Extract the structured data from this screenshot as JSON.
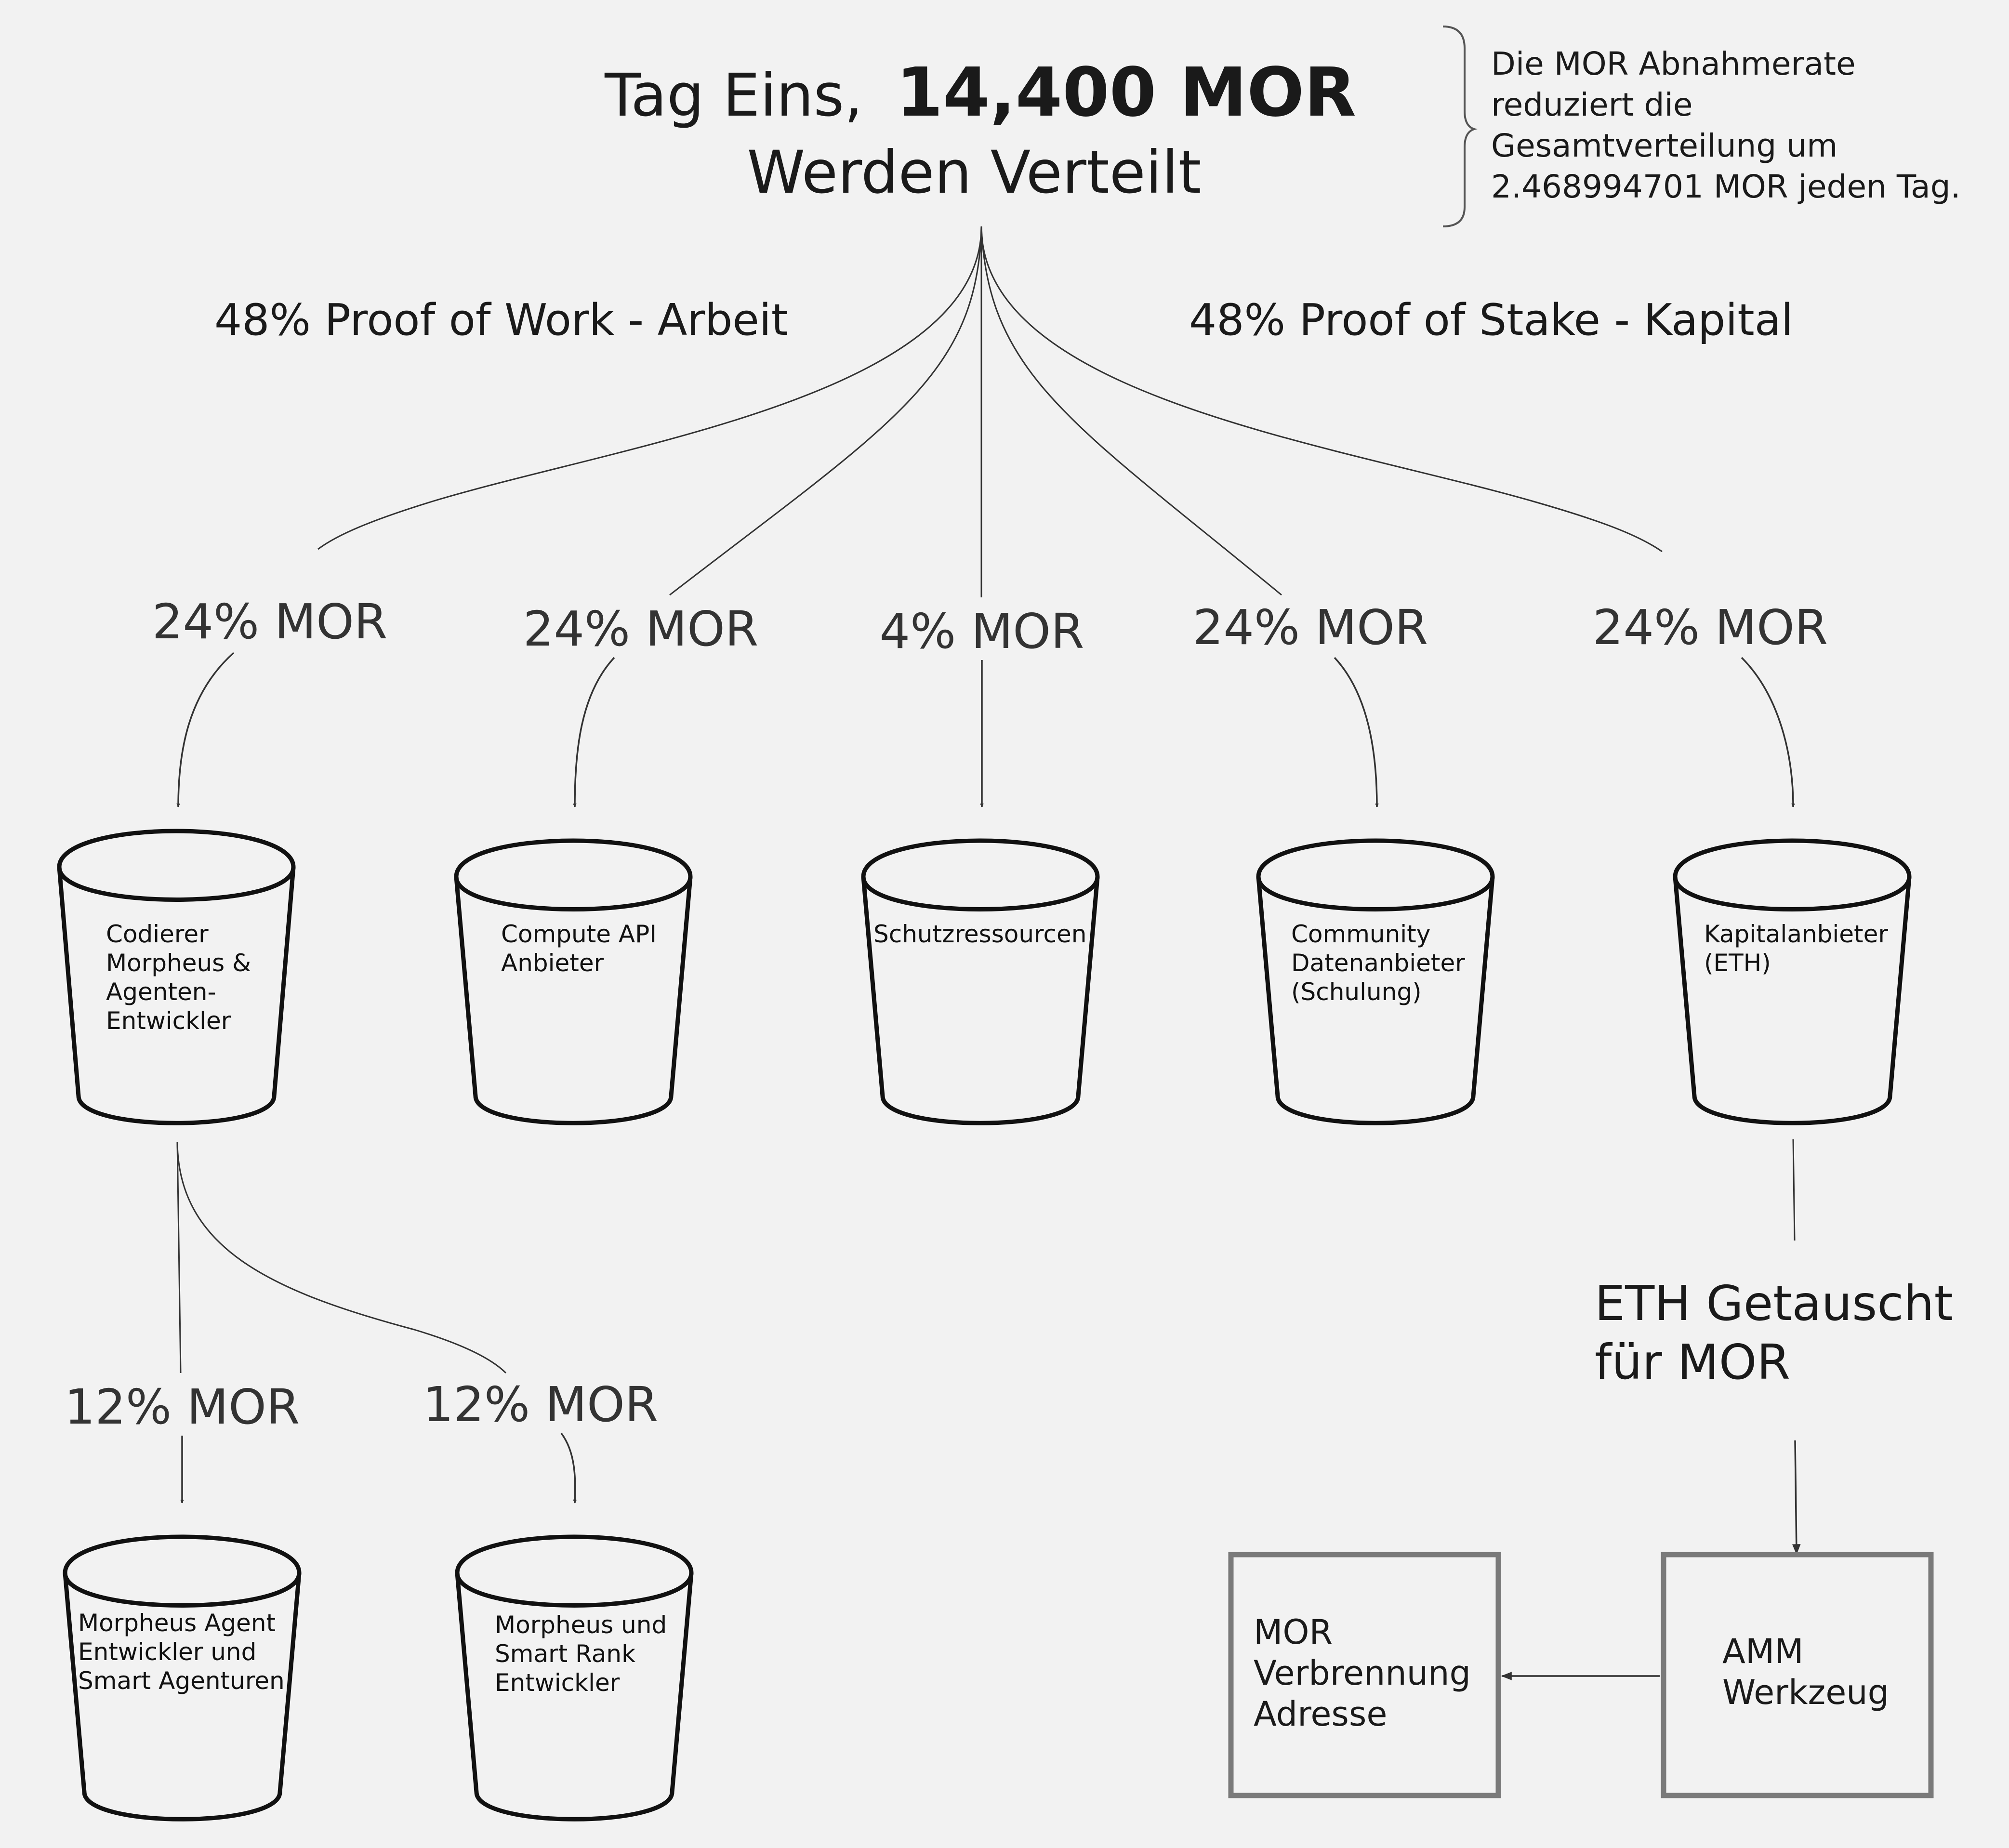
{
  "header": {
    "title_prefix": "Tag Eins,",
    "title_amount": "14,400 MOR",
    "title_line2": "Werden Verteilt"
  },
  "note": {
    "lines": [
      "Die MOR Abnahmerate",
      "reduziert die",
      "Gesamtverteilung um",
      "2.468994701 MOR jeden Tag."
    ]
  },
  "groups": {
    "work": "48% Proof of Work - Arbeit",
    "stake": "48% Proof of Stake - Kapital"
  },
  "shares": {
    "coders": "24% MOR",
    "compute": "24% MOR",
    "protection": "4% MOR",
    "community": "24% MOR",
    "capital": "24% MOR",
    "agents": "12% MOR",
    "smart_rank": "12% MOR"
  },
  "buckets": {
    "coders": [
      "Codierer",
      "Morpheus &",
      "Agenten-",
      "Entwickler"
    ],
    "compute": [
      "Compute API",
      "Anbieter"
    ],
    "protection": [
      "Schutzressourcen"
    ],
    "community": [
      "Community",
      "Datenanbieter",
      "(Schulung)"
    ],
    "capital": [
      "Kapitalanbieter",
      "(ETH)"
    ],
    "agents": [
      "Morpheus Agent",
      "Entwickler und",
      "Smart Agenturen"
    ],
    "smart_rank": [
      "Morpheus und",
      "Smart Rank",
      "Entwickler"
    ]
  },
  "swap": {
    "lines": [
      "ETH Getauscht",
      "für MOR"
    ]
  },
  "boxes": {
    "burn": [
      "MOR",
      "Verbrennung",
      "Adresse"
    ],
    "amm": [
      "AMM",
      "Werkzeug"
    ]
  }
}
